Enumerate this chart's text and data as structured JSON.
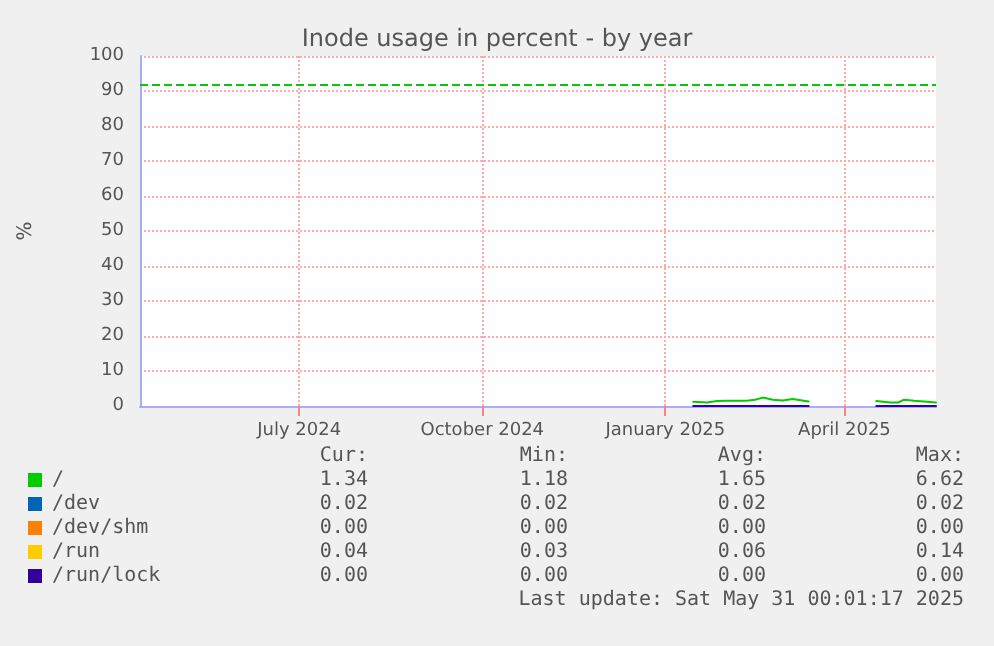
{
  "chart_data": {
    "type": "line",
    "title": "Inode usage in percent - by year",
    "ylabel": "%",
    "xlim": [
      "2024-04-26",
      "2025-05-31"
    ],
    "xticks": [
      {
        "value": "2024-07-15",
        "label": "July 2024"
      },
      {
        "value": "2024-10-15",
        "label": "October 2024"
      },
      {
        "value": "2025-01-15",
        "label": "January 2025"
      },
      {
        "value": "2025-04-15",
        "label": "April 2025"
      }
    ],
    "ylim": [
      0,
      100
    ],
    "yticks": [
      0,
      10,
      20,
      30,
      40,
      50,
      60,
      70,
      80,
      90,
      100
    ],
    "grid": true,
    "legend": "bottom",
    "marker": "none",
    "line_style": "solid",
    "series": [
      {
        "name": "/",
        "color": "#00cc00",
        "x": [
          "2025-01-29",
          "2025-02-05",
          "2025-02-10",
          "2025-02-15",
          "2025-02-25",
          "2025-03-01",
          "2025-03-05",
          "2025-03-10",
          "2025-03-15",
          "2025-03-20",
          "2025-03-28",
          "2025-04-14",
          "2025-05-01",
          "2025-05-08",
          "2025-05-12",
          "2025-05-15",
          "2025-05-20",
          "2025-05-25",
          "2025-05-31"
        ],
        "values": [
          1.2,
          1.0,
          1.4,
          1.5,
          1.5,
          1.8,
          2.4,
          1.8,
          1.6,
          2.0,
          1.3,
          null,
          1.4,
          1.0,
          1.0,
          1.8,
          1.5,
          1.3,
          1.0
        ]
      },
      {
        "name": "/dev",
        "color": "#0066b3"
      },
      {
        "name": "/dev/shm",
        "color": "#ff8000"
      },
      {
        "name": "/run",
        "color": "#ffcc00"
      },
      {
        "name": "/run/lock",
        "color": "#330099",
        "x": [
          "2025-01-29",
          "2025-03-28",
          "2025-04-14",
          "2025-05-01",
          "2025-05-31"
        ],
        "values": [
          0,
          0,
          null,
          0,
          0
        ]
      }
    ],
    "ref_lines": [
      {
        "axis": "y",
        "value": 92,
        "label": null,
        "color": "#00cc00",
        "line_style": "dashed"
      }
    ],
    "annotations": [
      "Cur:",
      "Min:",
      "Avg:",
      "Max:",
      "1.34",
      "1.18",
      "1.65",
      "6.62",
      "0.02",
      "0.02",
      "0.02",
      "0.02",
      "0.00",
      "0.00",
      "0.00",
      "0.00",
      "0.04",
      "0.03",
      "0.06",
      "0.14",
      "0.00",
      "0.00",
      "0.00",
      "0.00",
      "Last update: Sat May 31 00:01:17 2025"
    ]
  }
}
